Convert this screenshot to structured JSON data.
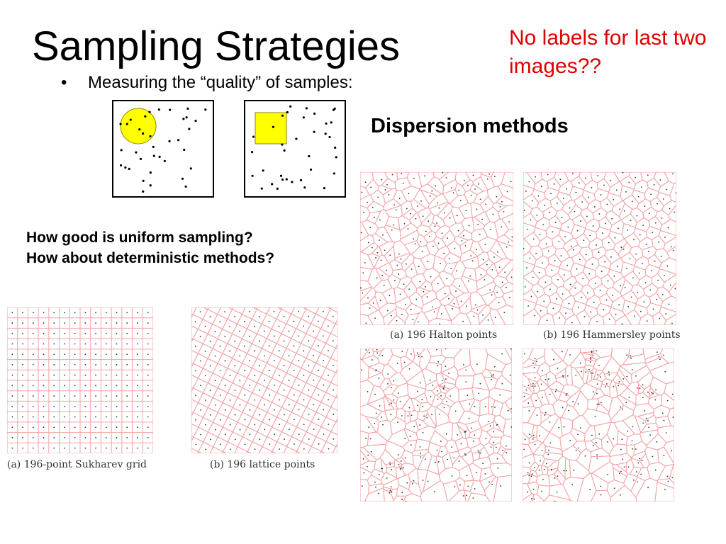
{
  "slide": {
    "title": "Sampling Strategies",
    "note": "No labels for last two images??",
    "bullet_marker": "•",
    "bullet": "Measuring the “quality” of samples:",
    "dispersion_heading": "Dispersion methods",
    "question_1": "How good is uniform sampling?",
    "question_2": "How about deterministic methods?"
  },
  "figures": {
    "sukharev_caption": "(a) 196-point Sukharev grid",
    "lattice_caption": "(b) 196 lattice points",
    "halton_caption": "(a) 196 Halton points",
    "hammersley_caption": "(b) 196 Hammersley points"
  },
  "colors": {
    "note": "#e00000",
    "voronoi_line": "#f4a4a4",
    "circle_fill": "#ffff00",
    "square_fill": "#ffff00",
    "shape_stroke": "#888800"
  }
}
